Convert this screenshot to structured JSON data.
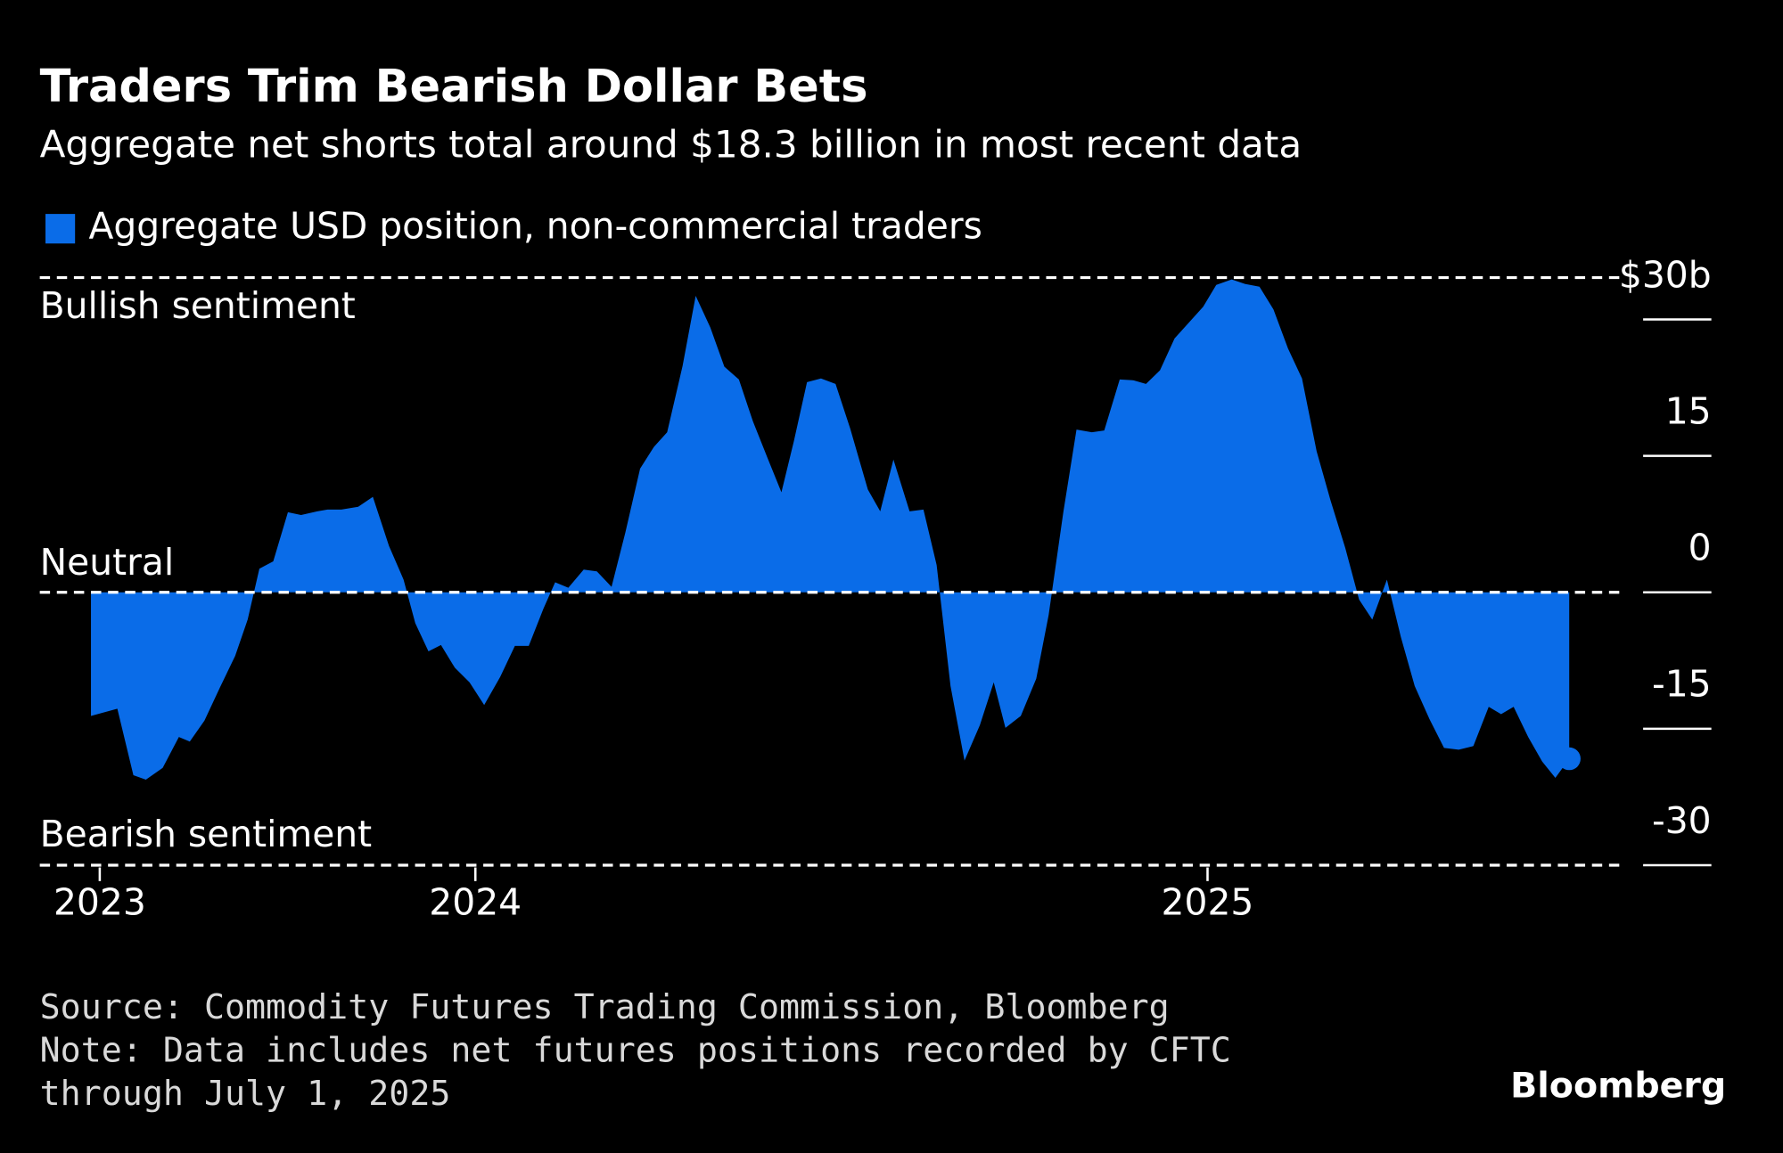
{
  "chart_data": {
    "type": "area",
    "title": "Traders Trim Bearish Dollar Bets",
    "subtitle": "Aggregate net shorts total around $18.3 billion in most recent data",
    "annotations": [
      "Bullish sentiment",
      "Neutral",
      "Bearish sentiment"
    ],
    "source": "Source: Commodity Futures Trading Commission, Bloomberg",
    "note": "Note: Data includes net futures positions recorded by CFTC through July 1, 2025",
    "logo": "Bloomberg",
    "x": [
      2023.475,
      2023.511,
      2023.533,
      2023.55,
      2023.573,
      2023.595,
      2023.61,
      2023.63,
      2023.651,
      2023.672,
      2023.689,
      2023.705,
      2023.724,
      2023.744,
      2023.762,
      2023.784,
      2023.798,
      2023.817,
      2023.84,
      2023.86,
      2023.882,
      2023.902,
      2023.918,
      2023.936,
      2023.953,
      2023.972,
      2023.992,
      2024.012,
      2024.034,
      2024.054,
      2024.073,
      2024.093,
      2024.109,
      2024.127,
      2024.148,
      2024.166,
      2024.186,
      2024.205,
      2024.225,
      2024.244,
      2024.262,
      2024.283,
      2024.301,
      2024.321,
      2024.34,
      2024.36,
      2024.379,
      2024.399,
      2024.418,
      2024.435,
      2024.453,
      2024.472,
      2024.492,
      2024.512,
      2024.536,
      2024.553,
      2024.571,
      2024.593,
      2024.612,
      2024.63,
      2024.649,
      2024.668,
      2024.689,
      2024.708,
      2024.724,
      2024.745,
      2024.766,
      2024.783,
      2024.803,
      2024.821,
      2024.842,
      2024.859,
      2024.88,
      2024.899,
      2024.916,
      2024.935,
      2024.955,
      2024.974,
      2024.994,
      2025.012,
      2025.033,
      2025.051,
      2025.071,
      2025.09,
      2025.11,
      2025.129,
      2025.149,
      2025.168,
      2025.188,
      2025.207,
      2025.225,
      2025.245,
      2025.264,
      2025.283,
      2025.303,
      2025.323,
      2025.343,
      2025.363,
      2025.384,
      2025.401,
      2025.418,
      2025.438,
      2025.457,
      2025.475,
      2025.494
    ],
    "series": [
      {
        "name": "Aggregate USD position, non-commercial traders",
        "color": "#0a6ce8",
        "values": [
          -13.6,
          -12.8,
          -20.1,
          -20.6,
          -19.3,
          -15.9,
          -16.4,
          -14.1,
          -10.5,
          -7.0,
          -3.0,
          2.6,
          3.4,
          8.8,
          8.5,
          8.9,
          9.1,
          9.1,
          9.4,
          10.5,
          5.1,
          1.4,
          -3.4,
          -6.5,
          -5.8,
          -8.3,
          -9.9,
          -12.4,
          -9.3,
          -5.9,
          -5.9,
          -1.8,
          1.1,
          0.5,
          2.5,
          2.3,
          0.6,
          6.6,
          13.6,
          16.0,
          17.6,
          24.9,
          32.6,
          29.1,
          24.8,
          23.4,
          18.8,
          14.8,
          11.0,
          16.6,
          23.1,
          23.5,
          22.9,
          18.0,
          11.3,
          8.9,
          14.6,
          8.9,
          9.1,
          3.0,
          -10.3,
          -18.5,
          -14.6,
          -9.9,
          -14.9,
          -13.6,
          -9.5,
          -2.5,
          8.8,
          17.9,
          17.6,
          17.8,
          23.4,
          23.3,
          22.9,
          24.4,
          27.9,
          29.6,
          31.4,
          33.8,
          34.4,
          33.9,
          33.6,
          31.1,
          26.8,
          23.5,
          15.5,
          10.1,
          4.9,
          -0.8,
          -3.0,
          1.4,
          -4.9,
          -10.3,
          -13.9,
          -17.1,
          -17.3,
          -16.9,
          -12.6,
          -13.4,
          -12.6,
          -15.9,
          -18.6,
          -20.4,
          -18.3
        ]
      }
    ],
    "xlim": [
      2023.475,
      2025.494
    ],
    "xticks": [
      {
        "value": 2023.487,
        "label": "2023"
      },
      2024,
      2025
    ],
    "ylim": [
      -30,
      34.6
    ],
    "yticks": [
      {
        "value": 30,
        "label": "$30b"
      },
      15,
      0,
      -15,
      -30
    ],
    "legend": "top-left"
  }
}
